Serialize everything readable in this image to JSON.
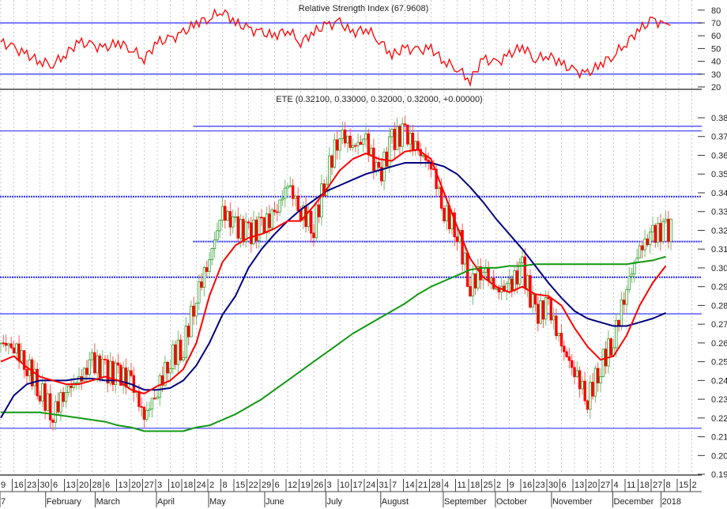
{
  "rsi_panel": {
    "title": "Relative Strength Index (67.9608)"
  },
  "price_panel": {
    "title": "ETE (0.32100, 0.33000, 0.32000, 0.32000, +0.00000)"
  },
  "colors": {
    "up": "#2e9e2e",
    "down": "#ff0000",
    "ma_short": "#ff0000",
    "ma_mid": "#000080",
    "ma_long": "#119911",
    "levels": "#2222ff",
    "rsi": "#ff0000"
  },
  "chart_data": [
    {
      "type": "line",
      "name_shown": "Relative Strength Index",
      "yticks": [
        20,
        30,
        40,
        50,
        60,
        70,
        80
      ],
      "ylim": [
        17,
        88
      ],
      "levels": [
        70,
        30
      ],
      "values": [
        55,
        50,
        45,
        40,
        38,
        46,
        55,
        52,
        50,
        55,
        50,
        42,
        55,
        57,
        62,
        70,
        74,
        80,
        70,
        65,
        62,
        60,
        65,
        55,
        63,
        68,
        70,
        62,
        66,
        57,
        45,
        50,
        48,
        50,
        40,
        35,
        25,
        42,
        38,
        45,
        52,
        42,
        45,
        38,
        32,
        30,
        38,
        45,
        55,
        65,
        72,
        68
      ]
    },
    {
      "type": "candlestick",
      "ticker": "ETE",
      "yticks": [
        "0.19",
        "0.20",
        "0.21",
        "0.22",
        "0.23",
        "0.24",
        "0.25",
        "0.26",
        "0.27",
        "0.28",
        "0.29",
        "0.30",
        "0.31",
        "0.32",
        "0.33",
        "0.34",
        "0.35",
        "0.36",
        "0.37",
        "0.38"
      ],
      "ylim": [
        0.1865,
        0.3855
      ],
      "weekly_close": [
        0.26,
        0.258,
        0.248,
        0.235,
        0.222,
        0.235,
        0.24,
        0.25,
        0.245,
        0.243,
        0.24,
        0.22,
        0.235,
        0.252,
        0.258,
        0.285,
        0.305,
        0.33,
        0.322,
        0.318,
        0.322,
        0.328,
        0.345,
        0.33,
        0.322,
        0.35,
        0.372,
        0.365,
        0.368,
        0.348,
        0.368,
        0.372,
        0.362,
        0.355,
        0.33,
        0.32,
        0.29,
        0.3,
        0.288,
        0.29,
        0.3,
        0.275,
        0.28,
        0.258,
        0.245,
        0.23,
        0.248,
        0.262,
        0.29,
        0.31,
        0.318,
        0.32
      ],
      "moving_averages": {
        "short": [
          0.25,
          0.253,
          0.247,
          0.242,
          0.24,
          0.238,
          0.238,
          0.24,
          0.242,
          0.24,
          0.235,
          0.233,
          0.237,
          0.24,
          0.246,
          0.26,
          0.285,
          0.303,
          0.312,
          0.316,
          0.318,
          0.321,
          0.325,
          0.325,
          0.333,
          0.342,
          0.352,
          0.358,
          0.361,
          0.358,
          0.357,
          0.362,
          0.363,
          0.358,
          0.34,
          0.322,
          0.305,
          0.295,
          0.29,
          0.287,
          0.29,
          0.286,
          0.285,
          0.28,
          0.268,
          0.258,
          0.251,
          0.253,
          0.264,
          0.28,
          0.292,
          0.301
        ],
        "mid": [
          0.22,
          0.232,
          0.238,
          0.24,
          0.24,
          0.24,
          0.241,
          0.241,
          0.24,
          0.24,
          0.238,
          0.235,
          0.235,
          0.236,
          0.24,
          0.248,
          0.26,
          0.275,
          0.285,
          0.3,
          0.31,
          0.318,
          0.325,
          0.331,
          0.336,
          0.341,
          0.344,
          0.347,
          0.35,
          0.352,
          0.354,
          0.356,
          0.356,
          0.356,
          0.354,
          0.35,
          0.343,
          0.335,
          0.326,
          0.318,
          0.31,
          0.301,
          0.292,
          0.284,
          0.277,
          0.273,
          0.271,
          0.269,
          0.269,
          0.271,
          0.273,
          0.276
        ],
        "long": [
          0.223,
          0.223,
          0.223,
          0.223,
          0.222,
          0.221,
          0.22,
          0.219,
          0.218,
          0.216,
          0.215,
          0.213,
          0.213,
          0.213,
          0.213,
          0.215,
          0.216,
          0.219,
          0.222,
          0.226,
          0.23,
          0.235,
          0.24,
          0.245,
          0.25,
          0.255,
          0.26,
          0.265,
          0.269,
          0.273,
          0.277,
          0.281,
          0.286,
          0.29,
          0.293,
          0.296,
          0.299,
          0.3,
          0.3,
          0.301,
          0.301,
          0.302,
          0.302,
          0.302,
          0.302,
          0.302,
          0.302,
          0.302,
          0.302,
          0.303,
          0.304,
          0.306
        ]
      },
      "levels": [
        {
          "value": 0.3755,
          "style": "solid",
          "from_week": 15
        },
        {
          "value": 0.373,
          "style": "solid",
          "from_week": 0
        },
        {
          "value": 0.338,
          "style": "dotted",
          "from_week": 0
        },
        {
          "value": 0.314,
          "style": "dotted",
          "from_week": 15
        },
        {
          "value": 0.295,
          "style": "dotted",
          "from_week": 0
        },
        {
          "value": 0.2755,
          "style": "solid",
          "from_week": 0
        },
        {
          "value": 0.2145,
          "style": "solid",
          "from_week": 0
        }
      ]
    }
  ],
  "x_axis": {
    "days": [
      "9",
      "16",
      "23",
      "30",
      "6",
      "13",
      "20",
      "28",
      "6",
      "13",
      "20",
      "27",
      "3",
      "10",
      "18",
      "24",
      "2",
      "8",
      "15",
      "22",
      "29",
      "6",
      "12",
      "19",
      "26",
      "3",
      "10",
      "17",
      "24",
      "31",
      "7",
      "14",
      "21",
      "28",
      "4",
      "11",
      "18",
      "25",
      "2",
      "9",
      "16",
      "23",
      "30",
      "6",
      "13",
      "20",
      "27",
      "4",
      "11",
      "18",
      "27",
      "8",
      "15",
      "2"
    ],
    "months": [
      {
        "label": "7",
        "week": 0
      },
      {
        "label": "February",
        "week": 3.5
      },
      {
        "label": "March",
        "week": 7.3
      },
      {
        "label": "April",
        "week": 12
      },
      {
        "label": "May",
        "week": 16
      },
      {
        "label": "June",
        "week": 20.3
      },
      {
        "label": "July",
        "week": 25
      },
      {
        "label": "August",
        "week": 29.2
      },
      {
        "label": "September",
        "week": 34
      },
      {
        "label": "October",
        "week": 38
      },
      {
        "label": "November",
        "week": 42.3
      },
      {
        "label": "December",
        "week": 47
      },
      {
        "label": "2018",
        "week": 50.7
      }
    ]
  }
}
